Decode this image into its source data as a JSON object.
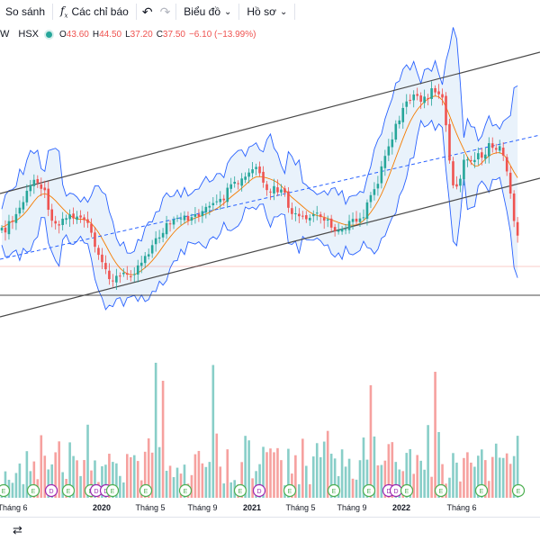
{
  "toolbar": {
    "compare_label": "So sánh",
    "indicators_icon": "function-icon",
    "indicators_label": "Các chỉ báo",
    "undo_icon": "undo-icon",
    "redo_icon": "redo-icon",
    "chart_label": "Biểu đồ",
    "profile_label": "Hồ sơ"
  },
  "legend": {
    "symbol": "W",
    "exchange": "HSX",
    "open_label": "O",
    "open": "43.60",
    "high_label": "H",
    "high": "44.50",
    "low_label": "L",
    "low": "37.20",
    "close_label": "C",
    "close": "37.50",
    "change": "−6.10 (−13.99%)"
  },
  "colors": {
    "up": "#26a69a",
    "down": "#ef5350",
    "band": "#2962ff",
    "band_fill": "#e3effa",
    "basis": "#f57c00",
    "trend": "#4a4a4a",
    "dashed": "#2962ff",
    "last_price": "#ef5350"
  },
  "x_axis": {
    "labels": [
      "Tháng 6",
      "2020",
      "Tháng 5",
      "Tháng 9",
      "2021",
      "Tháng 5",
      "Tháng 9",
      "2022",
      "Tháng 6"
    ]
  },
  "event_markers": {
    "letters": [
      "E",
      "E",
      "D",
      "E",
      "E",
      "D",
      "D",
      "E",
      "E",
      "E",
      "E",
      "D",
      "E",
      "E",
      "E",
      "D",
      "D",
      "E",
      "E",
      "E",
      "E"
    ]
  },
  "chart_data": {
    "type": "candlestick",
    "symbol": "W",
    "exchange": "HSX",
    "last_bar": {
      "open": 43.6,
      "high": 44.5,
      "low": 37.2,
      "close": 37.5,
      "change": -6.1,
      "change_pct": -13.99
    },
    "indicators": [
      "Bollinger Bands",
      "Trend channel",
      "Volume"
    ]
  },
  "bottom_bar": {
    "icon": "replay-icon"
  }
}
